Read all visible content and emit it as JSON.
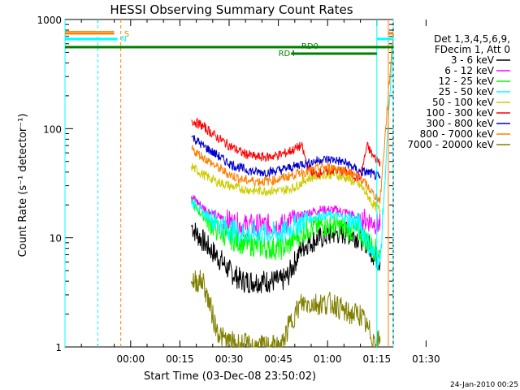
{
  "chart_data": {
    "type": "line",
    "title": "HESSI Observing Summary Count Rates",
    "xlabel": "Start Time (03-Dec-08 23:50:02)",
    "ylabel": "Count Rate (s⁻¹ detector⁻¹)",
    "yscale": "log",
    "ylim": [
      1,
      1000
    ],
    "xlim_minutes": [
      -10,
      90
    ],
    "x_tick_labels": [
      "00:00",
      "00:15",
      "00:30",
      "00:45",
      "01:00",
      "01:15",
      "01:30"
    ],
    "x_tick_minutes": [
      10,
      25,
      40,
      55,
      70,
      85,
      100
    ],
    "y_tick_labels": [
      "1",
      "10",
      "100",
      "1000"
    ],
    "y_tick_values": [
      1,
      10,
      100,
      1000
    ],
    "legend_position": "right",
    "legend_header": [
      "Det 1,3,4,5,6,9,",
      "FDecim 1, Att 0"
    ],
    "footer_date": "24-Jan-2010 00:25",
    "series": [
      {
        "name": "3 - 6 keV",
        "color": "#000000",
        "points": [
          [
            28.5,
            13
          ],
          [
            30,
            11
          ],
          [
            34,
            8
          ],
          [
            38,
            6
          ],
          [
            40,
            5
          ],
          [
            44,
            4
          ],
          [
            48,
            4
          ],
          [
            52,
            4
          ],
          [
            56,
            4
          ],
          [
            58,
            4.5
          ],
          [
            60,
            6
          ],
          [
            62,
            8
          ],
          [
            64,
            9
          ],
          [
            68,
            10
          ],
          [
            72,
            11
          ],
          [
            76,
            11
          ],
          [
            80,
            10
          ],
          [
            82,
            9
          ],
          [
            84,
            7
          ],
          [
            86,
            6
          ]
        ]
      },
      {
        "name": "6 - 12 keV",
        "color": "#ff00ff",
        "points": [
          [
            28.5,
            24
          ],
          [
            32,
            19
          ],
          [
            36,
            16
          ],
          [
            40,
            14
          ],
          [
            44,
            13
          ],
          [
            48,
            13
          ],
          [
            52,
            13
          ],
          [
            56,
            13
          ],
          [
            58,
            14
          ],
          [
            60,
            15
          ],
          [
            62,
            16
          ],
          [
            64,
            17
          ],
          [
            68,
            18
          ],
          [
            72,
            18
          ],
          [
            76,
            17
          ],
          [
            80,
            15
          ],
          [
            84,
            14
          ],
          [
            86,
            13
          ]
        ]
      },
      {
        "name": "12 - 25 keV",
        "color": "#00ff00",
        "points": [
          [
            28.5,
            21
          ],
          [
            32,
            16
          ],
          [
            36,
            12
          ],
          [
            40,
            10
          ],
          [
            44,
            9
          ],
          [
            48,
            8.5
          ],
          [
            52,
            8
          ],
          [
            56,
            8
          ],
          [
            58,
            8.5
          ],
          [
            60,
            10
          ],
          [
            62,
            11
          ],
          [
            64,
            12
          ],
          [
            68,
            13
          ],
          [
            72,
            13
          ],
          [
            76,
            12
          ],
          [
            80,
            11
          ],
          [
            84,
            8
          ],
          [
            86,
            7
          ]
        ]
      },
      {
        "name": "25 - 50 keV",
        "color": "#00ffff",
        "points": [
          [
            -10,
            650
          ],
          [
            0,
            650
          ],
          [
            6,
            650
          ],
          [
            28.5,
            22
          ],
          [
            32,
            17
          ],
          [
            36,
            14
          ],
          [
            40,
            12
          ],
          [
            44,
            11
          ],
          [
            48,
            11
          ],
          [
            52,
            11
          ],
          [
            56,
            11
          ],
          [
            58,
            12
          ],
          [
            60,
            13
          ],
          [
            62,
            14
          ],
          [
            64,
            15
          ],
          [
            68,
            16
          ],
          [
            72,
            16
          ],
          [
            76,
            15
          ],
          [
            80,
            13
          ],
          [
            84,
            7
          ],
          [
            86,
            6
          ],
          [
            90,
            650
          ]
        ]
      },
      {
        "name": "50 - 100 keV",
        "color": "#cccc00",
        "points": [
          [
            28.5,
            45
          ],
          [
            32,
            38
          ],
          [
            36,
            33
          ],
          [
            40,
            30
          ],
          [
            44,
            28
          ],
          [
            48,
            27
          ],
          [
            52,
            27
          ],
          [
            56,
            27
          ],
          [
            58,
            28
          ],
          [
            60,
            29
          ],
          [
            62,
            32
          ],
          [
            64,
            35
          ],
          [
            68,
            38
          ],
          [
            72,
            38
          ],
          [
            76,
            35
          ],
          [
            80,
            30
          ],
          [
            82,
            25
          ],
          [
            84,
            20
          ],
          [
            86,
            18
          ]
        ]
      },
      {
        "name": "100 - 300 keV",
        "color": "#ff0000",
        "points": [
          [
            28.5,
            120
          ],
          [
            32,
            105
          ],
          [
            36,
            85
          ],
          [
            40,
            70
          ],
          [
            44,
            60
          ],
          [
            48,
            55
          ],
          [
            52,
            55
          ],
          [
            56,
            58
          ],
          [
            60,
            65
          ],
          [
            62,
            70
          ],
          [
            64,
            45
          ],
          [
            66,
            38
          ],
          [
            68,
            40
          ],
          [
            72,
            42
          ],
          [
            76,
            40
          ],
          [
            80,
            35
          ],
          [
            82,
            70
          ],
          [
            84,
            55
          ],
          [
            86,
            50
          ]
        ]
      },
      {
        "name": "300 - 800 keV",
        "color": "#0000cc",
        "points": [
          [
            28.5,
            85
          ],
          [
            32,
            70
          ],
          [
            36,
            58
          ],
          [
            40,
            48
          ],
          [
            44,
            43
          ],
          [
            48,
            40
          ],
          [
            52,
            40
          ],
          [
            56,
            42
          ],
          [
            60,
            45
          ],
          [
            62,
            48
          ],
          [
            64,
            48
          ],
          [
            66,
            50
          ],
          [
            68,
            52
          ],
          [
            72,
            52
          ],
          [
            76,
            48
          ],
          [
            80,
            40
          ],
          [
            82,
            40
          ],
          [
            84,
            38
          ],
          [
            86,
            35
          ]
        ]
      },
      {
        "name": "800 - 7000 keV",
        "color": "#ff8000",
        "points": [
          [
            -10,
            780
          ],
          [
            0,
            780
          ],
          [
            5,
            780
          ],
          [
            28.5,
            65
          ],
          [
            32,
            55
          ],
          [
            36,
            45
          ],
          [
            40,
            38
          ],
          [
            44,
            34
          ],
          [
            48,
            33
          ],
          [
            52,
            33
          ],
          [
            56,
            35
          ],
          [
            60,
            38
          ],
          [
            62,
            40
          ],
          [
            64,
            40
          ],
          [
            66,
            42
          ],
          [
            68,
            44
          ],
          [
            72,
            44
          ],
          [
            76,
            40
          ],
          [
            80,
            35
          ],
          [
            82,
            30
          ],
          [
            84,
            25
          ],
          [
            86,
            22
          ],
          [
            90,
            780
          ]
        ]
      },
      {
        "name": "7000 - 20000 keV",
        "color": "#808000",
        "points": [
          [
            28.5,
            4
          ],
          [
            32,
            4
          ],
          [
            34,
            2.5
          ],
          [
            36,
            1.5
          ],
          [
            38,
            1.2
          ],
          [
            40,
            1.1
          ],
          [
            48,
            1
          ],
          [
            56,
            1
          ],
          [
            58,
            1.5
          ],
          [
            60,
            2
          ],
          [
            62,
            2.5
          ],
          [
            64,
            2.5
          ],
          [
            68,
            2.5
          ],
          [
            72,
            2.5
          ],
          [
            76,
            2
          ],
          [
            80,
            2
          ],
          [
            82,
            1.5
          ],
          [
            84,
            1.2
          ],
          [
            86,
            1.1
          ]
        ]
      }
    ],
    "annotations": [
      {
        "text": "S",
        "color": "#ff8000"
      },
      {
        "text": "N",
        "color": "#00ffff"
      },
      {
        "text": "RD0",
        "color": "#008000"
      },
      {
        "text": "RD4",
        "color": "#008000"
      }
    ]
  }
}
